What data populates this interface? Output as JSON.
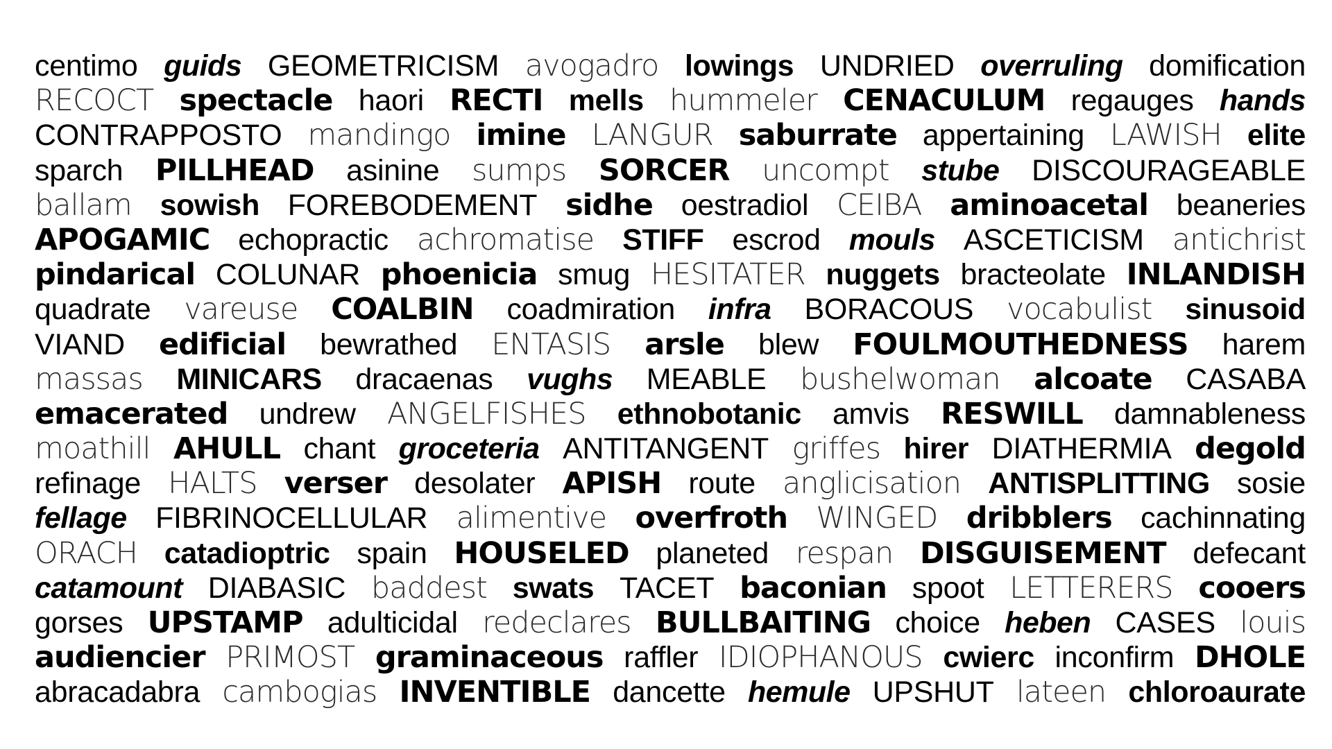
{
  "lines": [
    [
      {
        "text": "centimo",
        "style": "regular"
      },
      {
        "text": "guids",
        "style": "bold-italic"
      },
      {
        "text": "GEOMETRICISM",
        "style": "regular"
      },
      {
        "text": "avogadro",
        "style": "light"
      },
      {
        "text": "lowings",
        "style": "bold"
      },
      {
        "text": "UNDRIED",
        "style": "regular"
      },
      {
        "text": "overruling",
        "style": "bold-italic"
      },
      {
        "text": "domification",
        "style": "regular"
      }
    ],
    [
      {
        "text": "RECOCT",
        "style": "light"
      },
      {
        "text": "spectacle",
        "style": "heavy"
      },
      {
        "text": "haori",
        "style": "regular"
      },
      {
        "text": "RECTI",
        "style": "heavy"
      },
      {
        "text": "mells",
        "style": "bold"
      },
      {
        "text": "hummeler",
        "style": "light"
      },
      {
        "text": "CENACULUM",
        "style": "heavy"
      },
      {
        "text": "regauges",
        "style": "regular"
      },
      {
        "text": "hands",
        "style": "bold-italic"
      }
    ],
    [
      {
        "text": "CONTRAPPOSTO",
        "style": "regular"
      },
      {
        "text": "mandingo",
        "style": "light"
      },
      {
        "text": "imine",
        "style": "heavy"
      },
      {
        "text": "LANGUR",
        "style": "light"
      },
      {
        "text": "saburrate",
        "style": "heavy"
      },
      {
        "text": "appertaining",
        "style": "regular"
      },
      {
        "text": "LAWISH",
        "style": "light"
      },
      {
        "text": "elite",
        "style": "bold"
      }
    ],
    [
      {
        "text": "sparch",
        "style": "regular"
      },
      {
        "text": "PILLHEAD",
        "style": "heavy"
      },
      {
        "text": "asinine",
        "style": "regular"
      },
      {
        "text": "sumps",
        "style": "light"
      },
      {
        "text": "SORCER",
        "style": "heavy"
      },
      {
        "text": "uncompt",
        "style": "light"
      },
      {
        "text": "stube",
        "style": "bold-italic"
      },
      {
        "text": "DISCOURAGEABLE",
        "style": "regular"
      }
    ],
    [
      {
        "text": "ballam",
        "style": "light"
      },
      {
        "text": "sowish",
        "style": "bold"
      },
      {
        "text": "FOREBODEMENT",
        "style": "regular"
      },
      {
        "text": "sidhe",
        "style": "heavy"
      },
      {
        "text": "oestradiol",
        "style": "regular"
      },
      {
        "text": "CEIBA",
        "style": "light"
      },
      {
        "text": "aminoacetal",
        "style": "heavy"
      },
      {
        "text": "beaneries",
        "style": "regular"
      }
    ],
    [
      {
        "text": "APOGAMIC",
        "style": "heavy"
      },
      {
        "text": "echopractic",
        "style": "regular"
      },
      {
        "text": "achromatise",
        "style": "light"
      },
      {
        "text": "STIFF",
        "style": "bold"
      },
      {
        "text": "escrod",
        "style": "regular"
      },
      {
        "text": "mouls",
        "style": "bold-italic"
      },
      {
        "text": "ASCETICISM",
        "style": "regular"
      },
      {
        "text": "antichrist",
        "style": "light"
      }
    ],
    [
      {
        "text": "pindarical",
        "style": "heavy"
      },
      {
        "text": "COLUNAR",
        "style": "regular"
      },
      {
        "text": "phoenicia",
        "style": "heavy"
      },
      {
        "text": "smug",
        "style": "regular"
      },
      {
        "text": "HESITATER",
        "style": "light"
      },
      {
        "text": "nuggets",
        "style": "bold"
      },
      {
        "text": "bracteolate",
        "style": "regular"
      },
      {
        "text": "INLANDISH",
        "style": "heavy"
      }
    ],
    [
      {
        "text": "quadrate",
        "style": "regular"
      },
      {
        "text": "vareuse",
        "style": "light"
      },
      {
        "text": "COALBIN",
        "style": "heavy"
      },
      {
        "text": "coadmiration",
        "style": "regular"
      },
      {
        "text": "infra",
        "style": "bold-italic"
      },
      {
        "text": "BORACOUS",
        "style": "regular"
      },
      {
        "text": "vocabulist",
        "style": "light"
      },
      {
        "text": "sinusoid",
        "style": "bold"
      }
    ],
    [
      {
        "text": "VIAND",
        "style": "regular"
      },
      {
        "text": "edificial",
        "style": "heavy"
      },
      {
        "text": "bewrathed",
        "style": "regular"
      },
      {
        "text": "ENTASIS",
        "style": "light"
      },
      {
        "text": "arsle",
        "style": "heavy"
      },
      {
        "text": "blew",
        "style": "regular"
      },
      {
        "text": "FOULMOUTHEDNESS",
        "style": "heavy"
      },
      {
        "text": "harem",
        "style": "regular"
      }
    ],
    [
      {
        "text": "massas",
        "style": "light"
      },
      {
        "text": "MINICARS",
        "style": "bold"
      },
      {
        "text": "dracaenas",
        "style": "regular"
      },
      {
        "text": "vughs",
        "style": "bold-italic"
      },
      {
        "text": "MEABLE",
        "style": "regular"
      },
      {
        "text": "bushelwoman",
        "style": "light"
      },
      {
        "text": "alcoate",
        "style": "heavy"
      },
      {
        "text": "CASABA",
        "style": "regular"
      }
    ],
    [
      {
        "text": "emacerated",
        "style": "heavy"
      },
      {
        "text": "undrew",
        "style": "regular"
      },
      {
        "text": "ANGELFISHES",
        "style": "light"
      },
      {
        "text": "ethnobotanic",
        "style": "bold"
      },
      {
        "text": "amvis",
        "style": "regular"
      },
      {
        "text": "RESWILL",
        "style": "heavy"
      },
      {
        "text": "damnableness",
        "style": "regular"
      }
    ],
    [
      {
        "text": "moathill",
        "style": "light"
      },
      {
        "text": "AHULL",
        "style": "heavy"
      },
      {
        "text": "chant",
        "style": "regular"
      },
      {
        "text": "groceteria",
        "style": "bold-italic"
      },
      {
        "text": "ANTITANGENT",
        "style": "regular"
      },
      {
        "text": "griffes",
        "style": "light"
      },
      {
        "text": "hirer",
        "style": "bold"
      },
      {
        "text": "DIATHERMIA",
        "style": "regular"
      },
      {
        "text": "degold",
        "style": "heavy"
      }
    ],
    [
      {
        "text": "refinage",
        "style": "regular"
      },
      {
        "text": "HALTS",
        "style": "light"
      },
      {
        "text": "verser",
        "style": "heavy"
      },
      {
        "text": "desolater",
        "style": "regular"
      },
      {
        "text": "APISH",
        "style": "heavy"
      },
      {
        "text": "route",
        "style": "regular"
      },
      {
        "text": "anglicisation",
        "style": "light"
      },
      {
        "text": "ANTISPLITTING",
        "style": "bold"
      },
      {
        "text": "sosie",
        "style": "regular"
      }
    ],
    [
      {
        "text": "fellage",
        "style": "bold-italic"
      },
      {
        "text": "FIBRINOCELLULAR",
        "style": "regular"
      },
      {
        "text": "alimentive",
        "style": "light"
      },
      {
        "text": "overfroth",
        "style": "heavy"
      },
      {
        "text": "WINGED",
        "style": "light"
      },
      {
        "text": "dribblers",
        "style": "heavy"
      },
      {
        "text": "cachinnating",
        "style": "regular"
      }
    ],
    [
      {
        "text": "ORACH",
        "style": "light"
      },
      {
        "text": "catadioptric",
        "style": "bold"
      },
      {
        "text": "spain",
        "style": "regular"
      },
      {
        "text": "HOUSELED",
        "style": "heavy"
      },
      {
        "text": "planeted",
        "style": "regular"
      },
      {
        "text": "respan",
        "style": "light"
      },
      {
        "text": "DISGUISEMENT",
        "style": "heavy"
      },
      {
        "text": "defecant",
        "style": "regular"
      }
    ],
    [
      {
        "text": "catamount",
        "style": "bold-italic"
      },
      {
        "text": "DIABASIC",
        "style": "regular"
      },
      {
        "text": "baddest",
        "style": "light"
      },
      {
        "text": "swats",
        "style": "bold"
      },
      {
        "text": "TACET",
        "style": "regular"
      },
      {
        "text": "baconian",
        "style": "heavy"
      },
      {
        "text": "spoot",
        "style": "regular"
      },
      {
        "text": "LETTERERS",
        "style": "light"
      },
      {
        "text": "cooers",
        "style": "heavy"
      }
    ],
    [
      {
        "text": "gorses",
        "style": "regular"
      },
      {
        "text": "UPSTAMP",
        "style": "heavy"
      },
      {
        "text": "adulticidal",
        "style": "regular"
      },
      {
        "text": "redeclares",
        "style": "light"
      },
      {
        "text": "BULLBAITING",
        "style": "heavy"
      },
      {
        "text": "choice",
        "style": "regular"
      },
      {
        "text": "heben",
        "style": "bold-italic"
      },
      {
        "text": "CASES",
        "style": "regular"
      },
      {
        "text": "louis",
        "style": "light"
      }
    ],
    [
      {
        "text": "audiencier",
        "style": "heavy"
      },
      {
        "text": "PRIMOST",
        "style": "light"
      },
      {
        "text": "graminaceous",
        "style": "heavy"
      },
      {
        "text": "raffler",
        "style": "regular"
      },
      {
        "text": "IDIOPHANOUS",
        "style": "light"
      },
      {
        "text": "cwierc",
        "style": "bold"
      },
      {
        "text": "inconfirm",
        "style": "regular"
      },
      {
        "text": "DHOLE",
        "style": "heavy"
      }
    ],
    [
      {
        "text": "abracadabra",
        "style": "regular"
      },
      {
        "text": "cambogias",
        "style": "light"
      },
      {
        "text": "INVENTIBLE",
        "style": "heavy"
      },
      {
        "text": "dancette",
        "style": "regular"
      },
      {
        "text": "hemule",
        "style": "bold-italic"
      },
      {
        "text": "UPSHUT",
        "style": "regular"
      },
      {
        "text": "lateen",
        "style": "light"
      },
      {
        "text": "chloroaurate",
        "style": "bold"
      }
    ]
  ]
}
